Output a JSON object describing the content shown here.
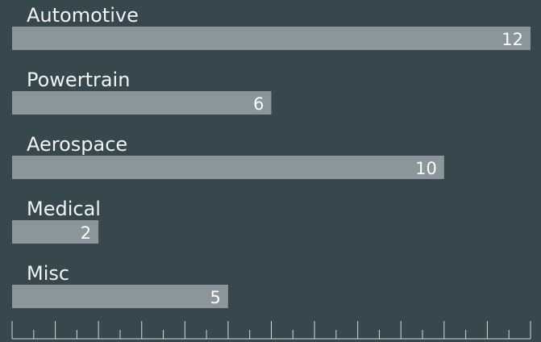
{
  "chart_data": {
    "type": "bar",
    "orientation": "horizontal",
    "categories": [
      "Automotive",
      "Powertrain",
      "Aerospace",
      "Medical",
      "Misc"
    ],
    "values": [
      12,
      6,
      10,
      2,
      5
    ],
    "title": "",
    "xlabel": "",
    "ylabel": "",
    "xlim": [
      0,
      12
    ],
    "grid": false,
    "legend": "none",
    "colors": {
      "background": "#36474e",
      "bar": "#8b959c",
      "text": "#f1f3f4",
      "axis": "#d3d8db"
    }
  }
}
